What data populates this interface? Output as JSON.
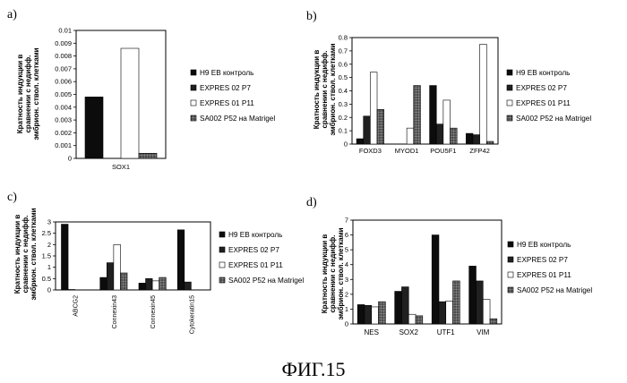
{
  "figure_caption": "ФИГ.15",
  "colors": {
    "H9 EB контроль": "#111111",
    "EXPRES 02 P7": "#222222",
    "EXPRES 01 P11": "#ffffff",
    "SA002 P52 на Matrigel": "#555555"
  },
  "chart_data": [
    {
      "id": "a",
      "panel_label": "a)",
      "type": "bar",
      "ylabel_lines": [
        "Кратность индукции в",
        "сравнении с недифф.",
        "эмбрион. ствол. клетками"
      ],
      "ylim": [
        0,
        0.01
      ],
      "yticks": [
        "0.01",
        "0.009",
        "0.008",
        "0.007",
        "0.006",
        "0.005",
        "0.004",
        "0.003",
        "0.002",
        "0.001",
        "0"
      ],
      "categories": [
        "SOX1"
      ],
      "series": [
        {
          "name": "H9 EB контроль",
          "values": [
            0.0048
          ]
        },
        {
          "name": "EXPRES 02 P7",
          "values": [
            0
          ]
        },
        {
          "name": "EXPRES 01 P11",
          "values": [
            0.0086
          ]
        },
        {
          "name": "SA002 P52 на Matrigel",
          "values": [
            0.0004
          ]
        }
      ],
      "legend": [
        "H9 EB контроль",
        "EXPRES 02 P7",
        "EXPRES 01 P11",
        "SA002 P52 на Matrigel"
      ]
    },
    {
      "id": "b",
      "panel_label": "b)",
      "type": "bar",
      "ylabel_lines": [
        "Кратность индукции в",
        "сравнении с недифф.",
        "эмбрион. ствол. клетками"
      ],
      "ylim": [
        0,
        0.8
      ],
      "yticks": [
        "0.8",
        "0.7",
        "0.6",
        "0.5",
        "0.4",
        "0.3",
        "0.2",
        "0.1",
        "0"
      ],
      "categories": [
        "FOXD3",
        "MYOD1",
        "POU5F1",
        "ZFP42"
      ],
      "series": [
        {
          "name": "H9 EB контроль",
          "values": [
            0.04,
            0,
            0.44,
            0.08
          ]
        },
        {
          "name": "EXPRES 02 P7",
          "values": [
            0.21,
            0,
            0.15,
            0.07
          ]
        },
        {
          "name": "EXPRES 01 P11",
          "values": [
            0.54,
            0.12,
            0.33,
            0.75
          ]
        },
        {
          "name": "SA002 P52 на Matrigel",
          "values": [
            0.26,
            0.44,
            0.12,
            0.02
          ]
        }
      ],
      "legend": [
        "H9 EB контроль",
        "EXPRES 02 P7",
        "EXPRES 01 P11",
        "SA002 P52 на Matrigel"
      ]
    },
    {
      "id": "c",
      "panel_label": "c)",
      "type": "bar",
      "ylabel_lines": [
        "Кратность индукции в",
        "сравнении с недифф.",
        "эмбрион. ствол. клетками"
      ],
      "ylim": [
        0,
        3
      ],
      "yticks": [
        "3",
        "2.5",
        "2",
        "1.5",
        "1",
        "0.5",
        "0"
      ],
      "categories": [
        "ABCG2",
        "Connexin43",
        "Connexin45",
        "Cytokeratin15"
      ],
      "series": [
        {
          "name": "H9 EB контроль",
          "values": [
            2.9,
            0.55,
            0.3,
            2.65
          ]
        },
        {
          "name": "EXPRES 02 P7",
          "values": [
            0.02,
            1.2,
            0.5,
            0.35
          ]
        },
        {
          "name": "EXPRES 01 P11",
          "values": [
            0,
            2.0,
            0.4,
            0
          ]
        },
        {
          "name": "SA002 P52 на Matrigel",
          "values": [
            0,
            0.75,
            0.55,
            0
          ]
        }
      ],
      "legend": [
        "H9 EB контроль",
        "EXPRES 02 P7",
        "EXPRES 01 P11",
        "SA002 P52 на Matrigel"
      ]
    },
    {
      "id": "d",
      "panel_label": "d)",
      "type": "bar",
      "ylabel_lines": [
        "Кратность индукции в",
        "сравнении с недифф.",
        "эмбрион. ствол. клетками"
      ],
      "ylim": [
        0,
        7
      ],
      "yticks": [
        "7",
        "6",
        "5",
        "4",
        "3",
        "2",
        "1",
        "0"
      ],
      "categories": [
        "NES",
        "SOX2",
        "UTF1",
        "VIM"
      ],
      "series": [
        {
          "name": "H9 EB контроль",
          "values": [
            1.3,
            2.2,
            6.0,
            3.9
          ]
        },
        {
          "name": "EXPRES 02 P7",
          "values": [
            1.25,
            2.5,
            1.5,
            2.9
          ]
        },
        {
          "name": "EXPRES 01 P11",
          "values": [
            1.15,
            0.65,
            1.55,
            1.65
          ]
        },
        {
          "name": "SA002 P52 на Matrigel",
          "values": [
            1.5,
            0.55,
            2.9,
            0.35
          ]
        }
      ],
      "legend": [
        "H9 EB контроль",
        "EXPRES 02 P7",
        "EXPRES 01 P11",
        "SA002 P52 на Matrigel"
      ]
    }
  ]
}
